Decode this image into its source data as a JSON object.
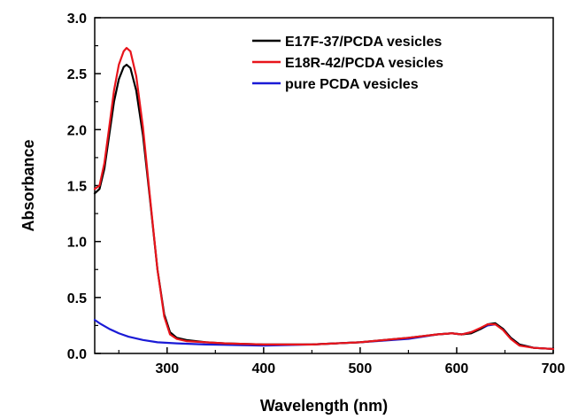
{
  "chart_data": {
    "type": "line",
    "xlabel": "Wavelength (nm)",
    "ylabel": "Absorbance",
    "xlim": [
      225,
      700
    ],
    "ylim": [
      0,
      3.0
    ],
    "x_ticks": [
      300,
      400,
      500,
      600,
      700
    ],
    "y_ticks": [
      0.0,
      0.5,
      1.0,
      1.5,
      2.0,
      2.5,
      3.0
    ],
    "x_tick_labels": [
      "300",
      "400",
      "500",
      "600",
      "700"
    ],
    "y_tick_labels": [
      "0.0",
      "0.5",
      "1.0",
      "1.5",
      "2.0",
      "2.5",
      "3.0"
    ],
    "legend_position": "top-right",
    "grid": false,
    "series": [
      {
        "name": "E17F-37/PCDA vesicles",
        "color": "#000000",
        "points": [
          [
            225,
            1.43
          ],
          [
            230,
            1.47
          ],
          [
            235,
            1.65
          ],
          [
            240,
            1.95
          ],
          [
            245,
            2.25
          ],
          [
            250,
            2.45
          ],
          [
            255,
            2.56
          ],
          [
            258,
            2.58
          ],
          [
            262,
            2.55
          ],
          [
            268,
            2.35
          ],
          [
            275,
            1.95
          ],
          [
            282,
            1.4
          ],
          [
            290,
            0.75
          ],
          [
            297,
            0.35
          ],
          [
            303,
            0.19
          ],
          [
            310,
            0.14
          ],
          [
            320,
            0.12
          ],
          [
            340,
            0.1
          ],
          [
            360,
            0.09
          ],
          [
            400,
            0.08
          ],
          [
            450,
            0.08
          ],
          [
            500,
            0.1
          ],
          [
            550,
            0.14
          ],
          [
            580,
            0.17
          ],
          [
            595,
            0.18
          ],
          [
            605,
            0.17
          ],
          [
            615,
            0.18
          ],
          [
            625,
            0.22
          ],
          [
            632,
            0.26
          ],
          [
            640,
            0.27
          ],
          [
            648,
            0.22
          ],
          [
            656,
            0.14
          ],
          [
            665,
            0.08
          ],
          [
            680,
            0.05
          ],
          [
            700,
            0.04
          ]
        ]
      },
      {
        "name": "E18R-42/PCDA vesicles",
        "color": "#e8141b",
        "points": [
          [
            225,
            1.47
          ],
          [
            230,
            1.5
          ],
          [
            235,
            1.7
          ],
          [
            240,
            2.02
          ],
          [
            245,
            2.35
          ],
          [
            250,
            2.58
          ],
          [
            255,
            2.7
          ],
          [
            258,
            2.73
          ],
          [
            262,
            2.7
          ],
          [
            268,
            2.48
          ],
          [
            275,
            2.02
          ],
          [
            282,
            1.42
          ],
          [
            290,
            0.75
          ],
          [
            297,
            0.33
          ],
          [
            303,
            0.17
          ],
          [
            310,
            0.13
          ],
          [
            320,
            0.11
          ],
          [
            340,
            0.1
          ],
          [
            360,
            0.09
          ],
          [
            400,
            0.08
          ],
          [
            450,
            0.08
          ],
          [
            500,
            0.1
          ],
          [
            550,
            0.14
          ],
          [
            580,
            0.17
          ],
          [
            595,
            0.18
          ],
          [
            605,
            0.17
          ],
          [
            615,
            0.19
          ],
          [
            625,
            0.23
          ],
          [
            632,
            0.26
          ],
          [
            640,
            0.26
          ],
          [
            648,
            0.21
          ],
          [
            656,
            0.13
          ],
          [
            665,
            0.07
          ],
          [
            680,
            0.05
          ],
          [
            700,
            0.04
          ]
        ]
      },
      {
        "name": "pure PCDA vesicles",
        "color": "#1a1ad6",
        "points": [
          [
            225,
            0.3
          ],
          [
            230,
            0.27
          ],
          [
            240,
            0.22
          ],
          [
            250,
            0.18
          ],
          [
            260,
            0.15
          ],
          [
            275,
            0.12
          ],
          [
            290,
            0.1
          ],
          [
            310,
            0.09
          ],
          [
            340,
            0.08
          ],
          [
            400,
            0.07
          ],
          [
            450,
            0.08
          ],
          [
            500,
            0.1
          ],
          [
            550,
            0.13
          ],
          [
            580,
            0.17
          ],
          [
            595,
            0.18
          ],
          [
            605,
            0.17
          ],
          [
            615,
            0.19
          ],
          [
            625,
            0.22
          ],
          [
            632,
            0.25
          ],
          [
            640,
            0.26
          ],
          [
            648,
            0.22
          ],
          [
            656,
            0.14
          ],
          [
            665,
            0.08
          ],
          [
            680,
            0.05
          ],
          [
            700,
            0.04
          ]
        ]
      }
    ]
  }
}
